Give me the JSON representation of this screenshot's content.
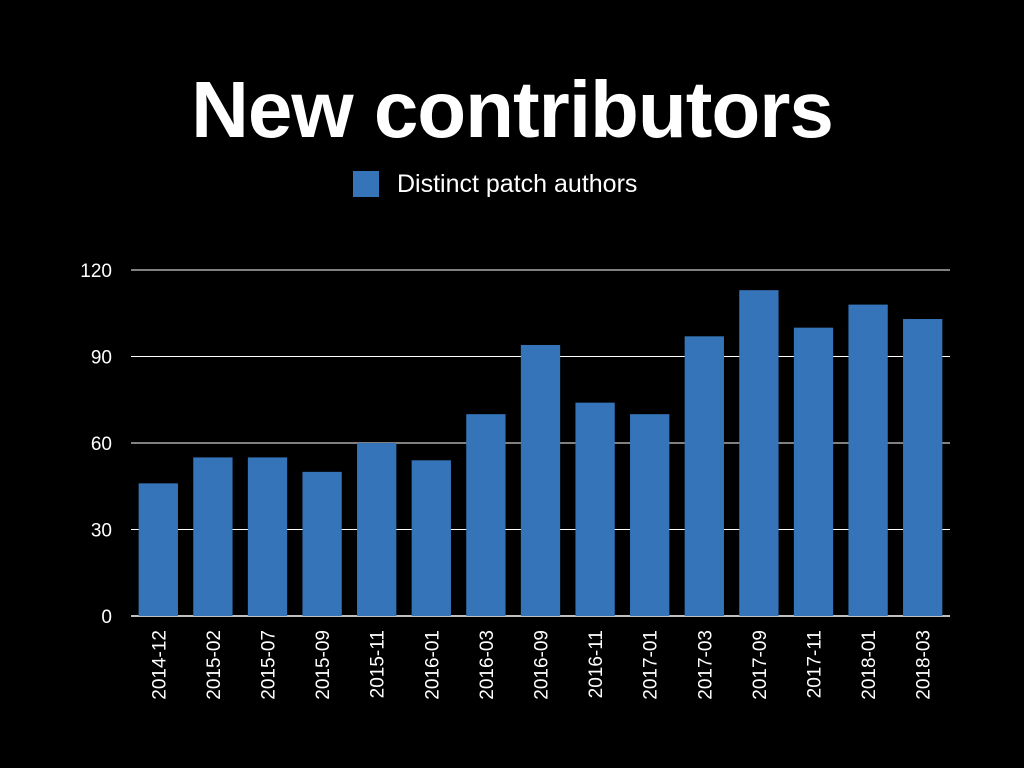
{
  "colors": {
    "background": "#000000",
    "bar": "#3574b9",
    "text": "#ffffff",
    "grid": "#ffffff"
  },
  "chart_data": {
    "type": "bar",
    "title": "New contributors",
    "xlabel": "",
    "ylabel": "",
    "legend_placement": "top-center",
    "grid": true,
    "ylim": [
      0,
      120
    ],
    "yticks": [
      0,
      30,
      60,
      90,
      120
    ],
    "categories": [
      "2014-12",
      "2015-02",
      "2015-07",
      "2015-09",
      "2015-11",
      "2016-01",
      "2016-03",
      "2016-09",
      "2016-11",
      "2017-01",
      "2017-03",
      "2017-09",
      "2017-11",
      "2018-01",
      "2018-03"
    ],
    "series": [
      {
        "name": "Distinct patch authors",
        "values": [
          46,
          55,
          55,
          50,
          60,
          54,
          70,
          94,
          74,
          70,
          97,
          113,
          100,
          108,
          103
        ]
      }
    ]
  }
}
